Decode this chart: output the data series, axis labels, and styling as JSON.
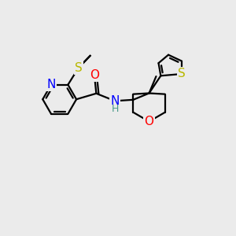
{
  "bg_color": "#ebebeb",
  "atom_colors": {
    "N": "#0000ff",
    "O": "#ff0000",
    "S": "#b8b800",
    "C": "#000000",
    "H": "#4a9a8a"
  },
  "bond_color": "#000000",
  "bond_width": 1.6,
  "font_size_atom": 11,
  "font_size_small": 9
}
